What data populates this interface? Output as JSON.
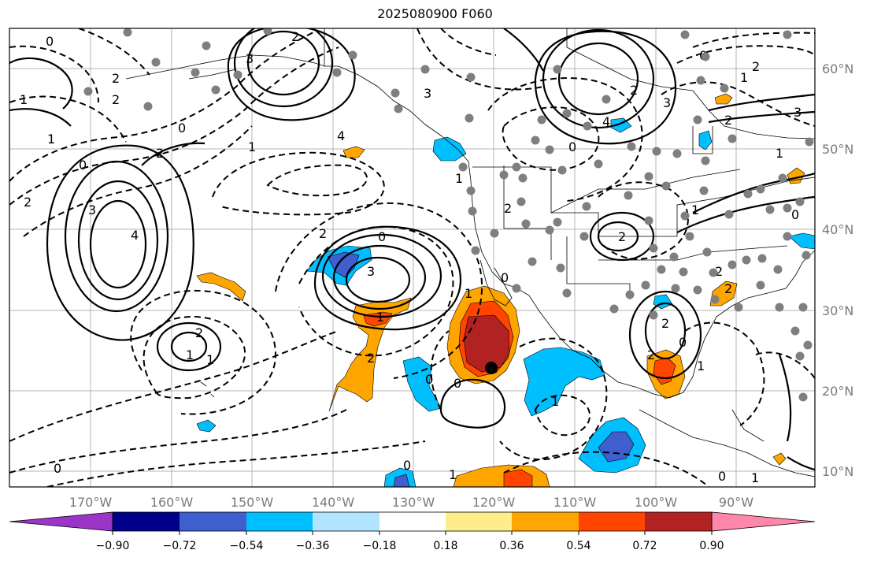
{
  "title": "2025080900 F060",
  "lon_labels": [
    "170°W",
    "160°W",
    "150°W",
    "140°W",
    "130°W",
    "120°W",
    "110°W",
    "100°W",
    "90°W"
  ],
  "lat_labels": [
    "60°N",
    "50°N",
    "40°N",
    "30°N",
    "20°N",
    "10°N"
  ],
  "colorbar": {
    "ticks": [
      "−0.90",
      "−0.72",
      "−0.54",
      "−0.36",
      "−0.18",
      "0.18",
      "0.36",
      "0.54",
      "0.72",
      "0.90"
    ],
    "colors": [
      "#9a35c8",
      "#00008b",
      "#3f5fcf",
      "#00bfff",
      "#b0e4ff",
      "#ffffff",
      "#ffec8b",
      "#ffa500",
      "#ff4500",
      "#b22222",
      "#ff88aa"
    ]
  },
  "contour_labels": [
    "0",
    "2",
    "3",
    "4",
    "2",
    "0",
    "1",
    "2",
    "1",
    "3",
    "2",
    "0",
    "4",
    "3",
    "2",
    "1",
    "2",
    "0",
    "1",
    "3",
    "2",
    "1",
    "3",
    "4",
    "2",
    "0",
    "2",
    "3",
    "1",
    "0",
    "2",
    "2",
    "1",
    "2",
    "0",
    "1",
    "0",
    "0",
    "1",
    "2",
    "2",
    "1",
    "0",
    "2",
    "2",
    "1",
    "1",
    "0",
    "1",
    "2",
    "1",
    "0",
    "0",
    "0",
    "1"
  ],
  "colors": {
    "land_fill": "#ffffff",
    "grid": "#b4b4b4",
    "frame": "#000000",
    "marker": "#000000",
    "dots": "#7f7f7f"
  }
}
